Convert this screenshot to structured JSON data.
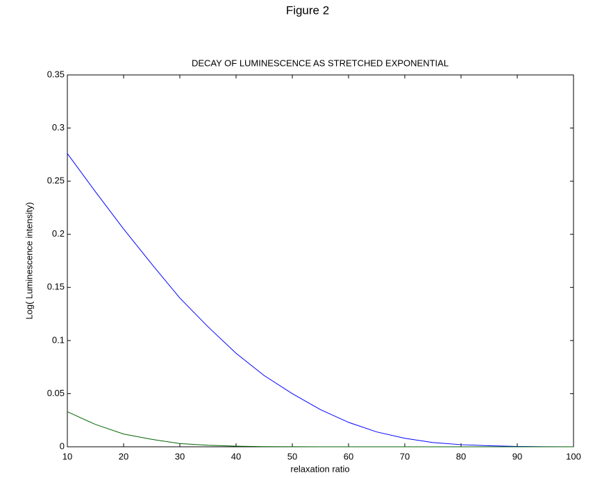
{
  "figure_title": "Figure 2",
  "chart_data": {
    "type": "line",
    "title": "DECAY OF LUMINESCENCE AS STRETCHED EXPONENTIAL",
    "x_label": "relaxation ratio",
    "y_label": "Log( Luminescence intensity)",
    "x": [
      10,
      15,
      20,
      25,
      30,
      35,
      40,
      45,
      50,
      55,
      60,
      65,
      70,
      75,
      80,
      85,
      90,
      95,
      100
    ],
    "series": [
      {
        "color": "#0000ff",
        "values": [
          0.276,
          0.24,
          0.205,
          0.172,
          0.14,
          0.113,
          0.088,
          0.067,
          0.05,
          0.035,
          0.023,
          0.014,
          0.008,
          0.004,
          0.002,
          0.001,
          0.0003,
          0.0001,
          0
        ]
      },
      {
        "color": "#006400",
        "values": [
          0.033,
          0.021,
          0.012,
          0.007,
          0.003,
          0.0015,
          0.0006,
          0.0002,
          0.0001,
          0,
          0,
          0,
          0,
          0,
          0,
          0,
          0,
          0,
          0
        ]
      }
    ],
    "xlim": [
      10,
      100
    ],
    "xticks": [
      10,
      20,
      30,
      40,
      50,
      60,
      70,
      80,
      90,
      100
    ],
    "ylim": [
      0,
      0.35
    ],
    "yticks": [
      0,
      0.05,
      0.1,
      0.15,
      0.2,
      0.25,
      0.3,
      0.35
    ],
    "grid": false
  }
}
